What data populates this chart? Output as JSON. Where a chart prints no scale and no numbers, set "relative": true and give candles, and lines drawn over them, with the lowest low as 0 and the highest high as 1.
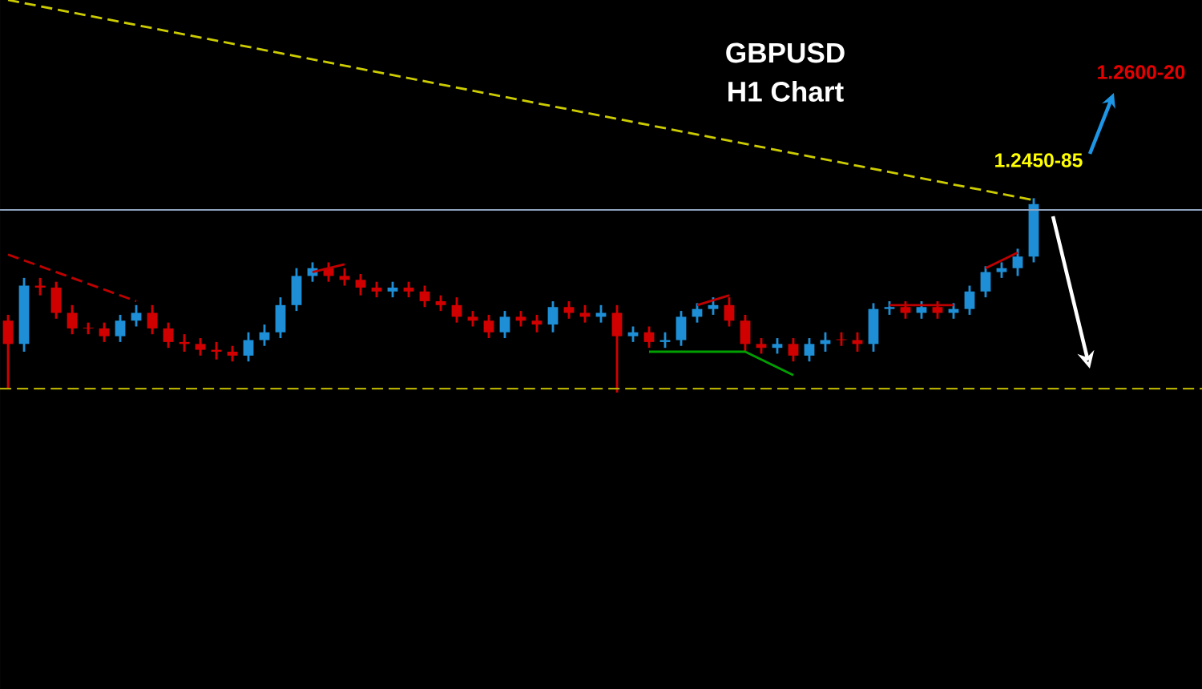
{
  "chart_data": {
    "type": "candlestick",
    "title": "GBPUSD",
    "subtitle": "H1 Chart",
    "relative": true,
    "categories": [
      null,
      null,
      null,
      null,
      null,
      null,
      null,
      null,
      null,
      null,
      null,
      null,
      null,
      null,
      null,
      null,
      null,
      null,
      null,
      null,
      null,
      null,
      null,
      null,
      null,
      null,
      null,
      null,
      null,
      null,
      null,
      null,
      null,
      null,
      null,
      null,
      null,
      null,
      null,
      null,
      null,
      null,
      null,
      null,
      null,
      null,
      null,
      null,
      null,
      null,
      null,
      null,
      null,
      null,
      null,
      null,
      null,
      null,
      null,
      null,
      null,
      null,
      null,
      null,
      null
    ],
    "ohlc": [
      [
        0.37,
        0.4,
        0.02,
        0.25
      ],
      [
        0.25,
        0.59,
        0.21,
        0.55
      ],
      [
        0.55,
        0.59,
        0.5,
        0.54
      ],
      [
        0.54,
        0.57,
        0.38,
        0.41
      ],
      [
        0.41,
        0.45,
        0.3,
        0.33
      ],
      [
        0.33,
        0.36,
        0.3,
        0.33
      ],
      [
        0.33,
        0.36,
        0.26,
        0.29
      ],
      [
        0.29,
        0.4,
        0.26,
        0.37
      ],
      [
        0.37,
        0.45,
        0.34,
        0.41
      ],
      [
        0.41,
        0.45,
        0.3,
        0.33
      ],
      [
        0.33,
        0.36,
        0.23,
        0.26
      ],
      [
        0.26,
        0.3,
        0.21,
        0.25
      ],
      [
        0.25,
        0.28,
        0.19,
        0.22
      ],
      [
        0.22,
        0.26,
        0.17,
        0.21
      ],
      [
        0.21,
        0.24,
        0.16,
        0.19
      ],
      [
        0.19,
        0.31,
        0.16,
        0.27
      ],
      [
        0.27,
        0.35,
        0.24,
        0.31
      ],
      [
        0.31,
        0.49,
        0.28,
        0.45
      ],
      [
        0.45,
        0.64,
        0.42,
        0.6
      ],
      [
        0.6,
        0.67,
        0.57,
        0.64
      ],
      [
        0.64,
        0.67,
        0.57,
        0.6
      ],
      [
        0.6,
        0.64,
        0.55,
        0.58
      ],
      [
        0.58,
        0.61,
        0.5,
        0.54
      ],
      [
        0.54,
        0.57,
        0.49,
        0.52
      ],
      [
        0.52,
        0.57,
        0.49,
        0.54
      ],
      [
        0.54,
        0.57,
        0.49,
        0.52
      ],
      [
        0.52,
        0.55,
        0.44,
        0.47
      ],
      [
        0.47,
        0.5,
        0.42,
        0.45
      ],
      [
        0.45,
        0.49,
        0.36,
        0.39
      ],
      [
        0.39,
        0.42,
        0.34,
        0.37
      ],
      [
        0.37,
        0.4,
        0.28,
        0.31
      ],
      [
        0.31,
        0.42,
        0.28,
        0.39
      ],
      [
        0.39,
        0.42,
        0.34,
        0.37
      ],
      [
        0.37,
        0.4,
        0.31,
        0.35
      ],
      [
        0.35,
        0.47,
        0.31,
        0.44
      ],
      [
        0.44,
        0.47,
        0.38,
        0.41
      ],
      [
        0.41,
        0.45,
        0.36,
        0.39
      ],
      [
        0.39,
        0.45,
        0.36,
        0.41
      ],
      [
        0.41,
        0.45,
        0,
        0.29
      ],
      [
        0.29,
        0.34,
        0.26,
        0.31
      ],
      [
        0.31,
        0.34,
        0.23,
        0.26
      ],
      [
        0.26,
        0.31,
        0.23,
        0.27
      ],
      [
        0.27,
        0.42,
        0.24,
        0.39
      ],
      [
        0.39,
        0.46,
        0.36,
        0.43
      ],
      [
        0.43,
        0.49,
        0.4,
        0.45
      ],
      [
        0.45,
        0.49,
        0.34,
        0.37
      ],
      [
        0.37,
        0.4,
        0.21,
        0.25
      ],
      [
        0.25,
        0.28,
        0.2,
        0.23
      ],
      [
        0.23,
        0.28,
        0.2,
        0.25
      ],
      [
        0.25,
        0.28,
        0.16,
        0.19
      ],
      [
        0.19,
        0.28,
        0.16,
        0.25
      ],
      [
        0.25,
        0.31,
        0.21,
        0.27
      ],
      [
        0.27,
        0.31,
        0.24,
        0.27
      ],
      [
        0.27,
        0.31,
        0.21,
        0.25
      ],
      [
        0.25,
        0.46,
        0.21,
        0.43
      ],
      [
        0.43,
        0.47,
        0.4,
        0.44
      ],
      [
        0.44,
        0.47,
        0.38,
        0.41
      ],
      [
        0.41,
        0.47,
        0.38,
        0.44
      ],
      [
        0.44,
        0.47,
        0.38,
        0.41
      ],
      [
        0.41,
        0.46,
        0.38,
        0.43
      ],
      [
        0.43,
        0.55,
        0.4,
        0.52
      ],
      [
        0.52,
        0.65,
        0.49,
        0.62
      ],
      [
        0.62,
        0.67,
        0.59,
        0.64
      ],
      [
        0.64,
        0.74,
        0.6,
        0.7
      ],
      [
        0.7,
        1.0,
        0.67,
        0.97
      ]
    ],
    "colors": [
      "#d10000",
      "#1e8fd6",
      "#d10000",
      "#d10000",
      "#d10000",
      "#d10000",
      "#d10000",
      "#1e8fd6",
      "#1e8fd6",
      "#d10000",
      "#d10000",
      "#d10000",
      "#d10000",
      "#d10000",
      "#d10000",
      "#1e8fd6",
      "#1e8fd6",
      "#1e8fd6",
      "#1e8fd6",
      "#1e8fd6",
      "#d10000",
      "#d10000",
      "#d10000",
      "#d10000",
      "#1e8fd6",
      "#d10000",
      "#d10000",
      "#d10000",
      "#d10000",
      "#d10000",
      "#d10000",
      "#1e8fd6",
      "#d10000",
      "#d10000",
      "#1e8fd6",
      "#d10000",
      "#d10000",
      "#1e8fd6",
      "#d10000",
      "#1e8fd6",
      "#d10000",
      "#1e8fd6",
      "#1e8fd6",
      "#1e8fd6",
      "#1e8fd6",
      "#d10000",
      "#d10000",
      "#d10000",
      "#1e8fd6",
      "#d10000",
      "#1e8fd6",
      "#1e8fd6",
      "#d10000",
      "#d10000",
      "#1e8fd6",
      "#1e8fd6",
      "#d10000",
      "#1e8fd6",
      "#d10000",
      "#1e8fd6",
      "#1e8fd6",
      "#1e8fd6",
      "#1e8fd6",
      "#1e8fd6",
      "#1e8fd6"
    ],
    "series": [
      {
        "type": "line",
        "color": "#cccc00",
        "line_style": "dashed",
        "values": [
          2.02,
          null,
          null,
          null,
          null,
          null,
          null,
          null,
          null,
          null,
          null,
          null,
          null,
          null,
          null,
          null,
          null,
          null,
          null,
          null,
          null,
          null,
          null,
          null,
          null,
          null,
          null,
          null,
          null,
          null,
          null,
          null,
          null,
          null,
          null,
          null,
          null,
          null,
          null,
          null,
          null,
          null,
          null,
          null,
          null,
          null,
          null,
          null,
          null,
          null,
          null,
          null,
          null,
          null,
          null,
          null,
          null,
          null,
          null,
          null,
          null,
          null,
          null,
          null,
          0.99
        ]
      },
      {
        "type": "line",
        "color": "#c00000",
        "line_style": "dashed",
        "values": [
          0.71,
          null,
          null,
          null,
          null,
          null,
          null,
          null,
          0.47,
          null,
          null,
          null,
          null,
          null,
          null,
          null,
          null,
          null,
          null,
          null,
          null,
          null,
          null,
          null,
          null,
          null,
          null,
          null,
          null,
          null,
          null,
          null,
          null,
          null,
          null,
          null,
          null,
          null,
          null,
          null,
          null,
          null,
          null,
          null,
          null,
          null,
          null,
          null,
          null,
          null,
          null,
          null,
          null,
          null,
          null,
          null,
          null,
          null,
          null,
          null,
          null,
          null,
          null,
          null,
          null
        ]
      },
      {
        "type": "line",
        "color": "#c00000",
        "values": [
          null,
          null,
          null,
          null,
          null,
          null,
          null,
          null,
          null,
          null,
          null,
          null,
          null,
          null,
          null,
          null,
          null,
          null,
          null,
          0.62,
          null,
          0.66,
          null,
          null,
          null,
          null,
          null,
          null,
          null,
          null,
          null,
          null,
          null,
          null,
          null,
          null,
          null,
          null,
          null,
          null,
          null,
          null,
          null,
          null,
          null,
          null,
          null,
          null,
          null,
          null,
          null,
          null,
          null,
          null,
          null,
          null,
          null,
          null,
          null,
          null,
          null,
          null,
          null,
          null,
          null
        ]
      },
      {
        "type": "line",
        "color": "#c00000",
        "values": [
          null,
          null,
          null,
          null,
          null,
          null,
          null,
          null,
          null,
          null,
          null,
          null,
          null,
          null,
          null,
          null,
          null,
          null,
          null,
          null,
          null,
          null,
          null,
          null,
          null,
          null,
          null,
          null,
          null,
          null,
          null,
          null,
          null,
          null,
          null,
          null,
          null,
          null,
          null,
          null,
          null,
          null,
          null,
          0.45,
          null,
          0.5,
          null,
          null,
          null,
          null,
          null,
          null,
          null,
          null,
          null,
          null,
          null,
          null,
          null,
          null,
          null,
          null,
          null,
          null,
          null
        ]
      },
      {
        "type": "line",
        "color": "#00a000",
        "values": [
          null,
          null,
          null,
          null,
          null,
          null,
          null,
          null,
          null,
          null,
          null,
          null,
          null,
          null,
          null,
          null,
          null,
          null,
          null,
          null,
          null,
          null,
          null,
          null,
          null,
          null,
          null,
          null,
          null,
          null,
          null,
          null,
          null,
          null,
          null,
          null,
          null,
          null,
          null,
          null,
          0.21,
          null,
          null,
          null,
          null,
          null,
          0.21,
          null,
          null,
          0.09,
          null,
          null,
          null,
          null,
          null,
          null,
          null,
          null,
          null,
          null,
          null,
          null,
          null,
          null,
          null
        ]
      },
      {
        "type": "line",
        "color": "#c00000",
        "values": [
          null,
          null,
          null,
          null,
          null,
          null,
          null,
          null,
          null,
          null,
          null,
          null,
          null,
          null,
          null,
          null,
          null,
          null,
          null,
          null,
          null,
          null,
          null,
          null,
          null,
          null,
          null,
          null,
          null,
          null,
          null,
          null,
          null,
          null,
          null,
          null,
          null,
          null,
          null,
          null,
          null,
          null,
          null,
          null,
          null,
          null,
          null,
          null,
          null,
          null,
          null,
          null,
          null,
          null,
          null,
          0.45,
          null,
          null,
          null,
          0.45,
          null,
          null,
          null,
          null,
          null
        ]
      },
      {
        "type": "line",
        "color": "#c00000",
        "values": [
          null,
          null,
          null,
          null,
          null,
          null,
          null,
          null,
          null,
          null,
          null,
          null,
          null,
          null,
          null,
          null,
          null,
          null,
          null,
          null,
          null,
          null,
          null,
          null,
          null,
          null,
          null,
          null,
          null,
          null,
          null,
          null,
          null,
          null,
          null,
          null,
          null,
          null,
          null,
          null,
          null,
          null,
          null,
          null,
          null,
          null,
          null,
          null,
          null,
          null,
          null,
          null,
          null,
          null,
          null,
          null,
          null,
          null,
          null,
          null,
          null,
          0.64,
          null,
          0.72,
          null
        ]
      }
    ],
    "ref_lines": [
      {
        "axis": "y",
        "value": 0.94,
        "color": "#8fa3bf",
        "line_style": "solid"
      },
      {
        "axis": "y",
        "value": 0.02,
        "color": "#b5b000",
        "line_style": "dashed"
      }
    ],
    "annotations": [
      "1.2450-85",
      "1.2600-20"
    ]
  }
}
